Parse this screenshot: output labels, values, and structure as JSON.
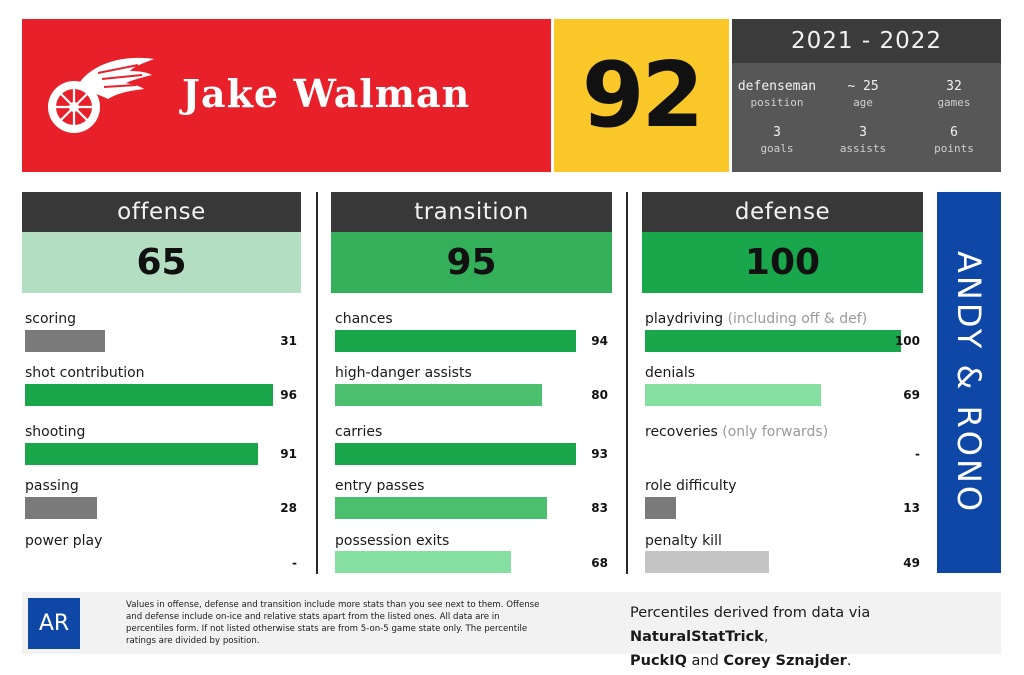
{
  "header": {
    "player_name": "Jake Walman",
    "jersey_number": "92",
    "season": "2021 - 2022",
    "info": [
      {
        "value": "defenseman",
        "label": "position"
      },
      {
        "value": "~ 25",
        "label": "age"
      },
      {
        "value": "32",
        "label": "games"
      },
      {
        "value": "3",
        "label": "goals"
      },
      {
        "value": "3",
        "label": "assists"
      },
      {
        "value": "6",
        "label": "points"
      }
    ],
    "logo_icon": "winged-wheel-icon"
  },
  "colors": {
    "red": "#e8202a",
    "yellow": "#fbc82a",
    "dark_gray": "#383838",
    "blue": "#0f47a6",
    "green_strong": "#1aa64a",
    "green_mid": "#4cbf6e",
    "green_light": "#84dfa0",
    "gray_bar": "#7a7a7a",
    "gray_light": "#c4c4c4"
  },
  "sections": {
    "offense": {
      "title": "offense",
      "score": "65",
      "stats": [
        {
          "label": "scoring",
          "value": "31",
          "percentile": 31
        },
        {
          "label": "shot contribution",
          "value": "96",
          "percentile": 96
        },
        {
          "label": "shooting",
          "value": "91",
          "percentile": 91
        },
        {
          "label": "passing",
          "value": "28",
          "percentile": 28
        },
        {
          "label": "power play",
          "value": "-",
          "percentile": 0
        }
      ]
    },
    "transition": {
      "title": "transition",
      "score": "95",
      "stats": [
        {
          "label": "chances",
          "value": "94",
          "percentile": 94
        },
        {
          "label": "high-danger assists",
          "value": "80",
          "percentile": 80
        },
        {
          "label": "carries",
          "value": "93",
          "percentile": 93
        },
        {
          "label": "entry passes",
          "value": "83",
          "percentile": 83
        },
        {
          "label": "possession exits",
          "value": "68",
          "percentile": 68
        }
      ]
    },
    "defense": {
      "title": "defense",
      "score": "100",
      "stats": [
        {
          "label": "playdriving",
          "note": "(including off & def)",
          "value": "100",
          "percentile": 100
        },
        {
          "label": "denials",
          "value": "69",
          "percentile": 69
        },
        {
          "label": "recoveries",
          "note": "(only forwards)",
          "value": "-",
          "percentile": 0
        },
        {
          "label": "role difficulty",
          "value": "13",
          "percentile": 13
        },
        {
          "label": "penalty kill",
          "value": "49",
          "percentile": 49
        }
      ]
    }
  },
  "side_brand": "ANDY & RONO",
  "footer": {
    "logo_text": "AR",
    "note": "Values in offense, defense and transition include more stats than you see next to them. Offense and defense include on-ice and relative stats apart from the listed ones. All data are in percentiles form. If not listed otherwise stats are from 5-on-5 game state only. The percentile ratings are divided by position.",
    "credit_prefix": "Percentiles derived from data via ",
    "credit_source_1": "NaturalStatTrick",
    "credit_sep_1": ",",
    "credit_source_2": "PuckIQ",
    "credit_sep_2": " and ",
    "credit_source_3": "Corey Sznajder",
    "credit_end": "."
  }
}
